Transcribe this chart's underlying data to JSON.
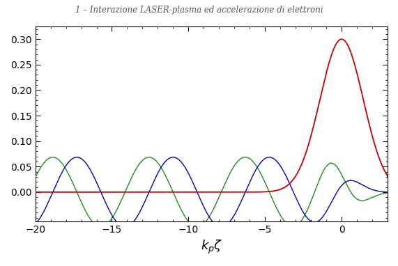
{
  "title": "1 – Interazione LASER-plasma ed accelerazione di elettroni",
  "xlabel": "$k_p \\zeta$",
  "xlim": [
    -20,
    3
  ],
  "ylim": [
    -0.058,
    0.325
  ],
  "yticks": [
    0.0,
    0.05,
    0.1,
    0.15,
    0.2,
    0.25,
    0.3
  ],
  "xticks": [
    -20,
    -15,
    -10,
    -5,
    0
  ],
  "a0": 0.3,
  "kpL": 1.4142135623730951,
  "color_red": "#cc0000",
  "color_blue": "#0000bb",
  "color_green": "#228B22",
  "figsize": [
    5.71,
    3.82
  ],
  "dpi": 100
}
